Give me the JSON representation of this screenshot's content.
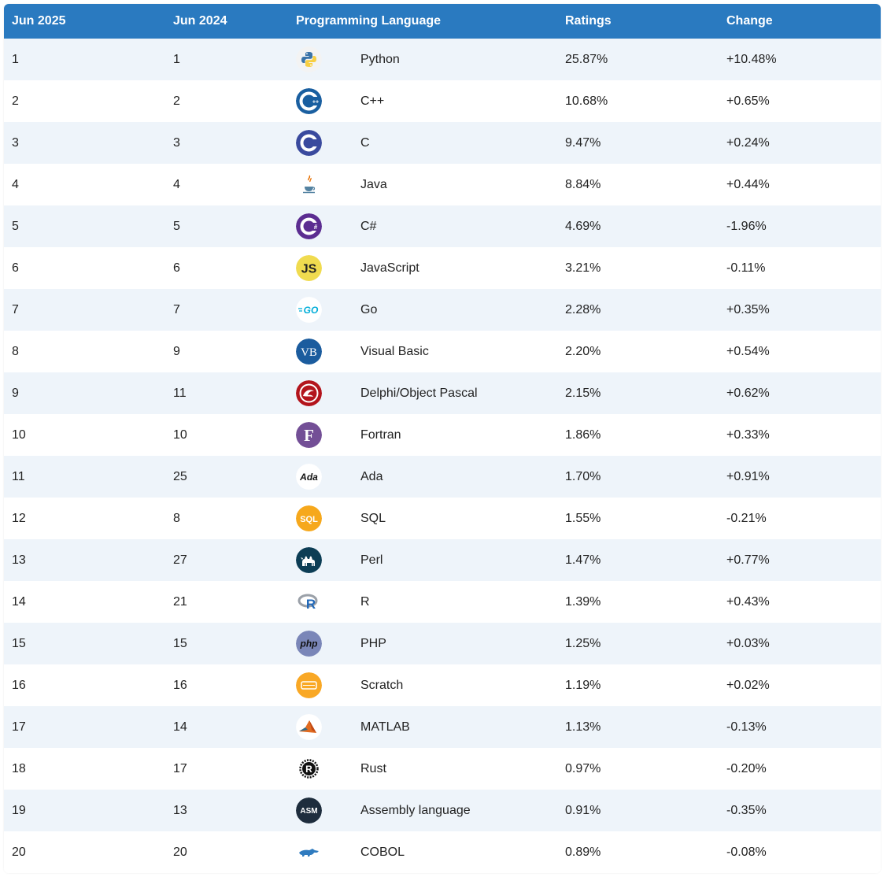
{
  "header": {
    "col_current": "Jun 2025",
    "col_previous": "Jun 2024",
    "col_language": "Programming Language",
    "col_ratings": "Ratings",
    "col_change": "Change"
  },
  "rows": [
    {
      "current": "1",
      "previous": "1",
      "language": "Python",
      "rating": "25.87%",
      "change": "+10.48%",
      "icon": "python-icon"
    },
    {
      "current": "2",
      "previous": "2",
      "language": "C++",
      "rating": "10.68%",
      "change": "+0.65%",
      "icon": "cpp-icon"
    },
    {
      "current": "3",
      "previous": "3",
      "language": "C",
      "rating": "9.47%",
      "change": "+0.24%",
      "icon": "c-icon"
    },
    {
      "current": "4",
      "previous": "4",
      "language": "Java",
      "rating": "8.84%",
      "change": "+0.44%",
      "icon": "java-icon"
    },
    {
      "current": "5",
      "previous": "5",
      "language": "C#",
      "rating": "4.69%",
      "change": "-1.96%",
      "icon": "csharp-icon"
    },
    {
      "current": "6",
      "previous": "6",
      "language": "JavaScript",
      "rating": "3.21%",
      "change": "-0.11%",
      "icon": "javascript-icon"
    },
    {
      "current": "7",
      "previous": "7",
      "language": "Go",
      "rating": "2.28%",
      "change": "+0.35%",
      "icon": "go-icon"
    },
    {
      "current": "8",
      "previous": "9",
      "language": "Visual Basic",
      "rating": "2.20%",
      "change": "+0.54%",
      "icon": "visual-basic-icon"
    },
    {
      "current": "9",
      "previous": "11",
      "language": "Delphi/Object Pascal",
      "rating": "2.15%",
      "change": "+0.62%",
      "icon": "delphi-icon"
    },
    {
      "current": "10",
      "previous": "10",
      "language": "Fortran",
      "rating": "1.86%",
      "change": "+0.33%",
      "icon": "fortran-icon"
    },
    {
      "current": "11",
      "previous": "25",
      "language": "Ada",
      "rating": "1.70%",
      "change": "+0.91%",
      "icon": "ada-icon"
    },
    {
      "current": "12",
      "previous": "8",
      "language": "SQL",
      "rating": "1.55%",
      "change": "-0.21%",
      "icon": "sql-icon"
    },
    {
      "current": "13",
      "previous": "27",
      "language": "Perl",
      "rating": "1.47%",
      "change": "+0.77%",
      "icon": "perl-icon"
    },
    {
      "current": "14",
      "previous": "21",
      "language": "R",
      "rating": "1.39%",
      "change": "+0.43%",
      "icon": "r-icon"
    },
    {
      "current": "15",
      "previous": "15",
      "language": "PHP",
      "rating": "1.25%",
      "change": "+0.03%",
      "icon": "php-icon"
    },
    {
      "current": "16",
      "previous": "16",
      "language": "Scratch",
      "rating": "1.19%",
      "change": "+0.02%",
      "icon": "scratch-icon"
    },
    {
      "current": "17",
      "previous": "14",
      "language": "MATLAB",
      "rating": "1.13%",
      "change": "-0.13%",
      "icon": "matlab-icon"
    },
    {
      "current": "18",
      "previous": "17",
      "language": "Rust",
      "rating": "0.97%",
      "change": "-0.20%",
      "icon": "rust-icon"
    },
    {
      "current": "19",
      "previous": "13",
      "language": "Assembly language",
      "rating": "0.91%",
      "change": "-0.35%",
      "icon": "assembly-icon"
    },
    {
      "current": "20",
      "previous": "20",
      "language": "COBOL",
      "rating": "0.89%",
      "change": "-0.08%",
      "icon": "cobol-icon"
    }
  ],
  "logos": {
    "js_text": "JS",
    "go_text": "GO",
    "vb_text": "VB",
    "fortran_text": "F",
    "ada_text": "Ada",
    "sql_text": "SQL",
    "r_text": "R",
    "php_text": "php",
    "asm_text": "ASM"
  },
  "colors": {
    "header_bg": "#2a7ac0",
    "row_alt_bg": "#eef4fa"
  }
}
